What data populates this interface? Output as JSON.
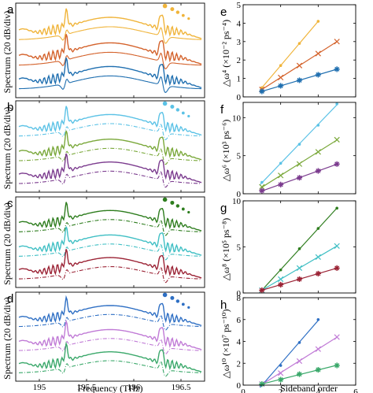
{
  "chart_data": [
    {
      "panel": "a",
      "type": "line",
      "ylabel": "Spectrum (20 dB/div)",
      "series": [
        {
          "color": "#f0b43a"
        },
        {
          "color": "#d4622b"
        },
        {
          "color": "#1f6fb0"
        }
      ]
    },
    {
      "panel": "b",
      "type": "line",
      "ylabel": "Spectrum (20 dB/div)",
      "series": [
        {
          "color": "#5bc2e6"
        },
        {
          "color": "#7aa83a"
        },
        {
          "color": "#7b3b8e"
        }
      ]
    },
    {
      "panel": "c",
      "type": "line",
      "ylabel": "Spectrum (20 dB/div)",
      "series": [
        {
          "color": "#2e7d1e"
        },
        {
          "color": "#3fbfc4"
        },
        {
          "color": "#9b2335"
        }
      ]
    },
    {
      "panel": "d",
      "type": "line",
      "ylabel": "Spectrum (20 dB/div)",
      "xlabel": "Frequency (THz)",
      "xticks": [
        "195",
        "195.5",
        "196",
        "196.5"
      ],
      "xlim": [
        194.75,
        196.75
      ],
      "series": [
        {
          "color": "#2e6fc4"
        },
        {
          "color": "#c07ad6"
        },
        {
          "color": "#3aa86a"
        }
      ]
    },
    {
      "panel": "e",
      "type": "scatter",
      "ylabel": "△ω⁴ (×10⁻² ps⁻⁴)",
      "xlim": [
        0,
        6
      ],
      "ylim": [
        0,
        5
      ],
      "yticks": [
        "0",
        "1",
        "2",
        "3",
        "4",
        "5"
      ],
      "series": [
        {
          "color": "#f0b43a",
          "marker": ".",
          "x": [
            1,
            2,
            3,
            4
          ],
          "y": [
            0.5,
            1.7,
            2.9,
            4.1
          ]
        },
        {
          "color": "#d4622b",
          "marker": "x",
          "x": [
            1,
            2,
            3,
            4,
            5
          ],
          "y": [
            0.4,
            1.05,
            1.7,
            2.35,
            3.0
          ]
        },
        {
          "color": "#1f6fb0",
          "marker": "*",
          "x": [
            1,
            2,
            3,
            4,
            5
          ],
          "y": [
            0.3,
            0.6,
            0.9,
            1.2,
            1.5
          ]
        }
      ]
    },
    {
      "panel": "f",
      "type": "scatter",
      "ylabel": "△ω⁶ (×10³ ps⁻⁶)",
      "xlim": [
        0,
        6
      ],
      "ylim": [
        0,
        12
      ],
      "yticks": [
        "0",
        "5",
        "10"
      ],
      "series": [
        {
          "color": "#5bc2e6",
          "marker": ".",
          "x": [
            1,
            2,
            3,
            4,
            5
          ],
          "y": [
            1.5,
            4.0,
            6.5,
            9.0,
            11.8
          ]
        },
        {
          "color": "#7aa83a",
          "marker": "x",
          "x": [
            1,
            2,
            3,
            4,
            5
          ],
          "y": [
            0.9,
            2.4,
            3.9,
            5.5,
            7.1
          ]
        },
        {
          "color": "#7b3b8e",
          "marker": "*",
          "x": [
            1,
            2,
            3,
            4,
            5
          ],
          "y": [
            0.4,
            1.2,
            2.1,
            3.0,
            3.9
          ]
        }
      ]
    },
    {
      "panel": "g",
      "type": "scatter",
      "ylabel": "△ω⁸ (×10⁵ ps⁻⁸)",
      "xlim": [
        0,
        6
      ],
      "ylim": [
        0,
        10
      ],
      "yticks": [
        "0",
        "5",
        "10"
      ],
      "series": [
        {
          "color": "#2e7d1e",
          "marker": ".",
          "x": [
            1,
            2,
            3,
            4,
            5
          ],
          "y": [
            0.3,
            2.5,
            4.8,
            7.0,
            9.2
          ]
        },
        {
          "color": "#3fbfc4",
          "marker": "x",
          "x": [
            1,
            2,
            3,
            4,
            5
          ],
          "y": [
            0.3,
            1.5,
            2.7,
            3.9,
            5.1
          ]
        },
        {
          "color": "#9b2335",
          "marker": "*",
          "x": [
            1,
            2,
            3,
            4,
            5
          ],
          "y": [
            0.3,
            0.9,
            1.5,
            2.1,
            2.7
          ]
        }
      ]
    },
    {
      "panel": "h",
      "type": "scatter",
      "ylabel": "△ω¹⁰ (×10⁷ ps⁻¹⁰)",
      "xlabel": "Sideband order",
      "xlim": [
        0,
        6
      ],
      "ylim": [
        0,
        8
      ],
      "xticks": [
        "0",
        "2",
        "4",
        "6"
      ],
      "yticks": [
        "0",
        "2",
        "4",
        "6",
        "8"
      ],
      "series": [
        {
          "color": "#2e6fc4",
          "marker": ".",
          "x": [
            1,
            2,
            3,
            4
          ],
          "y": [
            0.1,
            1.8,
            3.9,
            6.0
          ]
        },
        {
          "color": "#c07ad6",
          "marker": "x",
          "x": [
            1,
            2,
            3,
            4,
            5
          ],
          "y": [
            0.1,
            1.1,
            2.2,
            3.3,
            4.4
          ]
        },
        {
          "color": "#3aa86a",
          "marker": "*",
          "x": [
            1,
            2,
            3,
            4,
            5
          ],
          "y": [
            0.1,
            0.5,
            1.0,
            1.4,
            1.8
          ]
        }
      ]
    }
  ]
}
